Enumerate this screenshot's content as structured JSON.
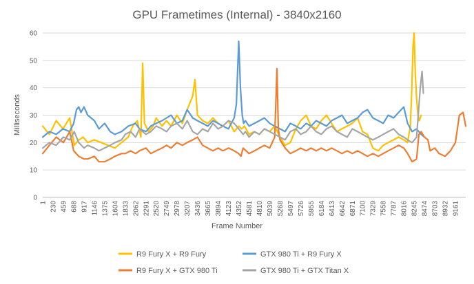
{
  "chart_data": {
    "type": "line",
    "title": "GPU Frametimes (Internal) - 3840x2160",
    "xlabel": "Frame Number",
    "ylabel": "Milliseconds",
    "ylim": [
      0,
      60
    ],
    "yticks": [
      0,
      10,
      20,
      30,
      40,
      50,
      60
    ],
    "xlim": [
      1,
      9390
    ],
    "xtick_labels": [
      "1",
      "230",
      "459",
      "688",
      "917",
      "1146",
      "1375",
      "1604",
      "1833",
      "2062",
      "2291",
      "2520",
      "2749",
      "2978",
      "3207",
      "3436",
      "3665",
      "3894",
      "4123",
      "4352",
      "4581",
      "4810",
      "5039",
      "5268",
      "5497",
      "5726",
      "5955",
      "6184",
      "6413",
      "6642",
      "6871",
      "7100",
      "7329",
      "7558",
      "7787",
      "8016",
      "8245",
      "8474",
      "8703",
      "8932",
      "9161"
    ],
    "grid": true,
    "legend_position": "bottom",
    "series": [
      {
        "name": "R9 Fury X + R9 Fury",
        "color": "#FFC000",
        "x": [
          1,
          150,
          300,
          450,
          600,
          700,
          800,
          900,
          1000,
          1146,
          1300,
          1450,
          1604,
          1750,
          1900,
          2000,
          2100,
          2180,
          2220,
          2260,
          2350,
          2450,
          2520,
          2650,
          2749,
          2850,
          2978,
          3100,
          3207,
          3330,
          3380,
          3436,
          3550,
          3665,
          3780,
          3894,
          4000,
          4123,
          4250,
          4352,
          4420,
          4480,
          4581,
          4700,
          4810,
          4920,
          5039,
          5150,
          5268,
          5380,
          5497,
          5620,
          5726,
          5850,
          5955,
          6070,
          6184,
          6300,
          6413,
          6530,
          6642,
          6760,
          6871,
          6990,
          7100,
          7210,
          7329,
          7450,
          7558,
          7670,
          7787,
          7900,
          8016,
          8100,
          8160,
          8190,
          8220,
          8245,
          8270,
          8300,
          8330,
          8360,
          8400
        ],
        "values": [
          26,
          23,
          28,
          25,
          29,
          19,
          21,
          22,
          20,
          21,
          20,
          19,
          18,
          20,
          22,
          26,
          28,
          22,
          49,
          27,
          24,
          26,
          29,
          26,
          28,
          26,
          30,
          27,
          32,
          37,
          43,
          30,
          28,
          27,
          29,
          27,
          26,
          28,
          24,
          26,
          25,
          26,
          23,
          24,
          23,
          25,
          24,
          26,
          22,
          19,
          20,
          25,
          28,
          30,
          26,
          25,
          28,
          30,
          27,
          24,
          25,
          26,
          27,
          29,
          24,
          23,
          18,
          17,
          19,
          20,
          21,
          22,
          21,
          20,
          26,
          38,
          55,
          60,
          45,
          36,
          30,
          28,
          30
        ]
      },
      {
        "name": "GTX 980 Ti + R9 Fury X",
        "color": "#5B9BD5",
        "x": [
          1,
          150,
          300,
          450,
          600,
          688,
          750,
          800,
          850,
          917,
          1000,
          1146,
          1250,
          1375,
          1500,
          1604,
          1750,
          1900,
          2062,
          2150,
          2291,
          2400,
          2520,
          2650,
          2749,
          2850,
          2978,
          3100,
          3207,
          3330,
          3436,
          3550,
          3665,
          3780,
          3894,
          4000,
          4123,
          4250,
          4300,
          4352,
          4390,
          4430,
          4460,
          4500,
          4581,
          4700,
          4810,
          4920,
          5039,
          5150,
          5268,
          5380,
          5497,
          5620,
          5726,
          5850,
          5955,
          6070,
          6184,
          6300,
          6413,
          6530,
          6642,
          6760,
          6871,
          6990,
          7100,
          7210,
          7329,
          7450,
          7558,
          7670,
          7787,
          7900,
          8016,
          8100,
          8200,
          8300,
          8400,
          8474
        ],
        "values": [
          22,
          24,
          23,
          25,
          24,
          27,
          32,
          33,
          31,
          33,
          30,
          28,
          25,
          27,
          24,
          23,
          24,
          26,
          27,
          25,
          24,
          26,
          27,
          28,
          29,
          30,
          27,
          28,
          32,
          29,
          28,
          27,
          26,
          28,
          27,
          26,
          25,
          29,
          34,
          57,
          40,
          30,
          27,
          28,
          26,
          27,
          28,
          29,
          27,
          26,
          25,
          24,
          27,
          26,
          25,
          27,
          26,
          28,
          27,
          26,
          28,
          29,
          30,
          27,
          28,
          29,
          31,
          32,
          29,
          28,
          27,
          30,
          29,
          31,
          33,
          27,
          24,
          25,
          23,
          22
        ]
      },
      {
        "name": "R9 Fury X + GTX 980 Ti",
        "color": "#ED7D31",
        "x": [
          1,
          150,
          300,
          459,
          600,
          688,
          800,
          917,
          1000,
          1146,
          1250,
          1375,
          1500,
          1604,
          1750,
          1833,
          1950,
          2062,
          2150,
          2291,
          2400,
          2520,
          2650,
          2749,
          2850,
          2978,
          3100,
          3207,
          3330,
          3436,
          3550,
          3665,
          3780,
          3894,
          4000,
          4123,
          4250,
          4352,
          4400,
          4450,
          4581,
          4700,
          4810,
          4920,
          5039,
          5150,
          5200,
          5230,
          5268,
          5380,
          5497,
          5620,
          5726,
          5850,
          5955,
          6070,
          6184,
          6300,
          6413,
          6530,
          6642,
          6760,
          6871,
          6990,
          7100,
          7210,
          7329,
          7450,
          7558,
          7670,
          7787,
          7900,
          8016,
          8100,
          8200,
          8300,
          8350,
          8400,
          8474,
          8550,
          8600,
          8703,
          8800,
          8932,
          9050,
          9161,
          9250,
          9330,
          9390
        ],
        "values": [
          16,
          19,
          22,
          20,
          24,
          17,
          15,
          14,
          14,
          15,
          13,
          13,
          14,
          15,
          16,
          16,
          17,
          16,
          17,
          18,
          16,
          17,
          18,
          19,
          18,
          20,
          19,
          20,
          21,
          22,
          19,
          18,
          17,
          18,
          17,
          18,
          17,
          16,
          15,
          18,
          16,
          17,
          18,
          19,
          18,
          22,
          47,
          25,
          21,
          18,
          16,
          17,
          18,
          17,
          18,
          17,
          18,
          17,
          18,
          17,
          16,
          17,
          16,
          17,
          16,
          15,
          16,
          15,
          16,
          17,
          18,
          19,
          18,
          16,
          13,
          14,
          23,
          24,
          22,
          21,
          17,
          18,
          16,
          15,
          17,
          20,
          30,
          31,
          26
        ]
      },
      {
        "name": "GTX 980 Ti + GTX Titan X",
        "color": "#A5A5A5",
        "x": [
          1,
          150,
          300,
          459,
          600,
          700,
          800,
          917,
          1000,
          1146,
          1250,
          1375,
          1500,
          1604,
          1750,
          1833,
          1950,
          2062,
          2150,
          2291,
          2400,
          2520,
          2650,
          2749,
          2850,
          2978,
          3100,
          3207,
          3330,
          3436,
          3550,
          3665,
          3780,
          3894,
          4000,
          4123,
          4250,
          4352,
          4450,
          4500,
          4581,
          4700,
          4810,
          4920,
          5039,
          5150,
          5268,
          5380,
          5497,
          5620,
          5726,
          5850,
          5955,
          6070,
          6184,
          6300,
          6413,
          6530,
          6642,
          6760,
          6871,
          6990,
          7100,
          7210,
          7329,
          7450,
          7558,
          7670,
          7787,
          7900,
          8016,
          8100,
          8200,
          8300,
          8380,
          8420,
          8450
        ],
        "values": [
          18,
          20,
          19,
          22,
          21,
          24,
          20,
          18,
          19,
          18,
          17,
          18,
          19,
          20,
          21,
          23,
          24,
          22,
          25,
          23,
          24,
          26,
          25,
          24,
          26,
          27,
          25,
          28,
          24,
          23,
          25,
          24,
          27,
          25,
          26,
          28,
          27,
          25,
          23,
          24,
          22,
          24,
          23,
          25,
          24,
          23,
          22,
          21,
          24,
          25,
          23,
          24,
          26,
          24,
          23,
          25,
          26,
          24,
          23,
          22,
          25,
          24,
          23,
          22,
          21,
          22,
          23,
          24,
          25,
          23,
          22,
          21,
          20,
          22,
          40,
          46,
          38
        ]
      }
    ]
  }
}
